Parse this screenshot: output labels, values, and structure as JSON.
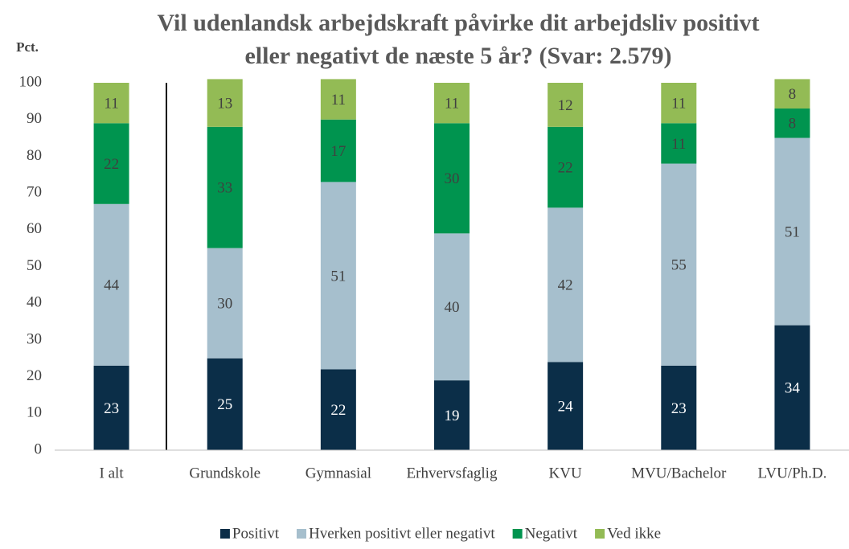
{
  "chart_data": {
    "type": "stacked_bar",
    "title": [
      "Vil udenlandsk arbejdskraft påvirke dit arbejdsliv positivt",
      "eller negativt de næste 5 år? (Svar: 2.579)"
    ],
    "y_label": "Pct.",
    "categories": [
      "I alt",
      "Grundskole",
      "Gymnasial",
      "Erhvervsfaglig",
      "KVU",
      "MVU/Bachelor",
      "LVU/Ph.D."
    ],
    "series": [
      {
        "name": "Positivt",
        "color": "#0b2e48",
        "values": [
          23,
          25,
          22,
          19,
          24,
          23,
          34
        ]
      },
      {
        "name": "Hverken positivt eller negativt",
        "color": "#a6bfcd",
        "values": [
          44,
          30,
          51,
          40,
          42,
          55,
          51
        ]
      },
      {
        "name": "Negativt",
        "color": "#00944f",
        "values": [
          22,
          33,
          17,
          30,
          22,
          11,
          8
        ]
      },
      {
        "name": "Ved ikke",
        "color": "#93bb55",
        "values": [
          11,
          13,
          11,
          11,
          12,
          11,
          8
        ]
      }
    ],
    "ylim": [
      0,
      100
    ],
    "yticks": [
      0,
      10,
      20,
      30,
      40,
      50,
      60,
      70,
      80,
      90,
      100
    ],
    "grid": false,
    "legend": "bottom"
  }
}
